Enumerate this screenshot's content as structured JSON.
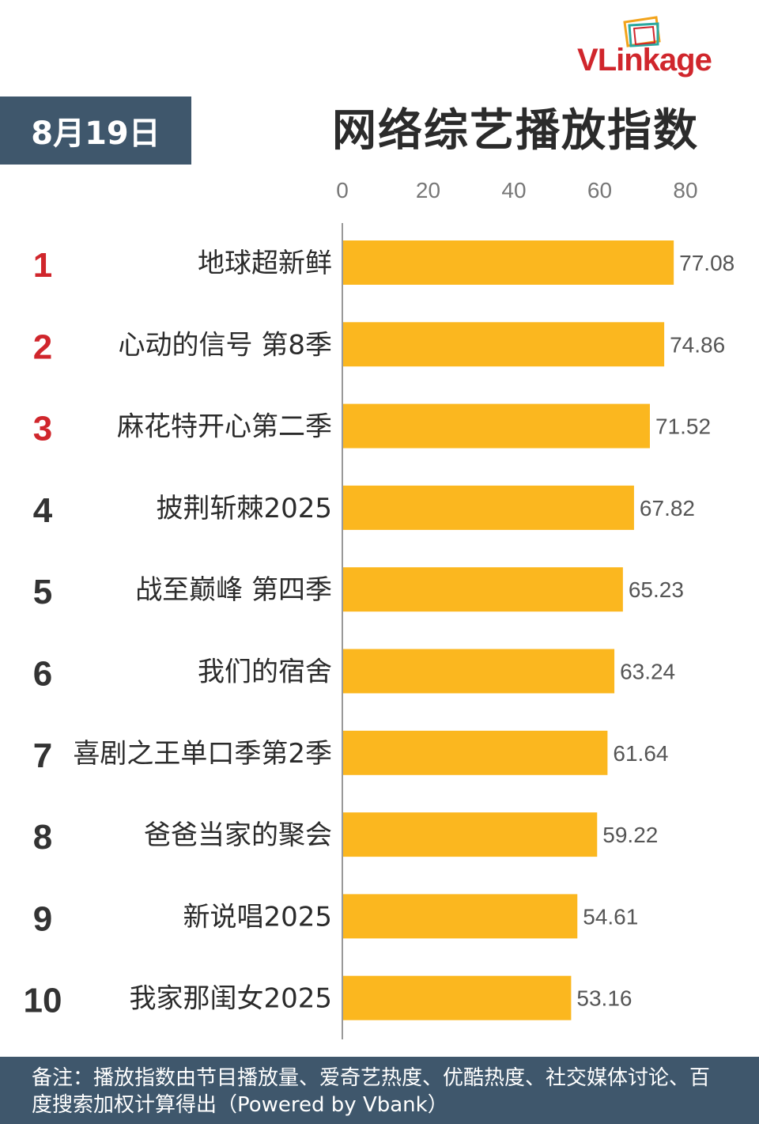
{
  "logo": {
    "text_v": "V",
    "text_rest": "Linkage"
  },
  "header": {
    "date": "8月19日",
    "title": "网络综艺播放指数"
  },
  "chart_data": {
    "type": "bar",
    "orientation": "horizontal",
    "xlim": [
      0,
      80
    ],
    "ticks": [
      0,
      20,
      40,
      60,
      80
    ],
    "ranks": [
      "1",
      "2",
      "3",
      "4",
      "5",
      "6",
      "7",
      "8",
      "9",
      "10"
    ],
    "categories": [
      "地球超新鲜",
      "心动的信号 第8季",
      "麻花特开心第二季",
      "披荆斩棘2025",
      "战至巅峰 第四季",
      "我们的宿舍",
      "喜剧之王单口季第2季",
      "爸爸当家的聚会",
      "新说唱2025",
      "我家那闺女2025"
    ],
    "values": [
      77.08,
      74.86,
      71.52,
      67.82,
      65.23,
      63.24,
      61.64,
      59.22,
      54.61,
      53.16
    ],
    "value_labels": [
      "77.08",
      "74.86",
      "71.52",
      "67.82",
      "65.23",
      "63.24",
      "61.64",
      "59.22",
      "54.61",
      "53.16"
    ],
    "bar_color": "#fbb71f",
    "top_rank_color": "#d0262c",
    "rank_color": "#333333"
  },
  "footer": {
    "note": "备注：播放指数由节目播放量、爱奇艺热度、优酷热度、社交媒体讨论、百度搜索加权计算得出（Powered by Vbank）"
  }
}
